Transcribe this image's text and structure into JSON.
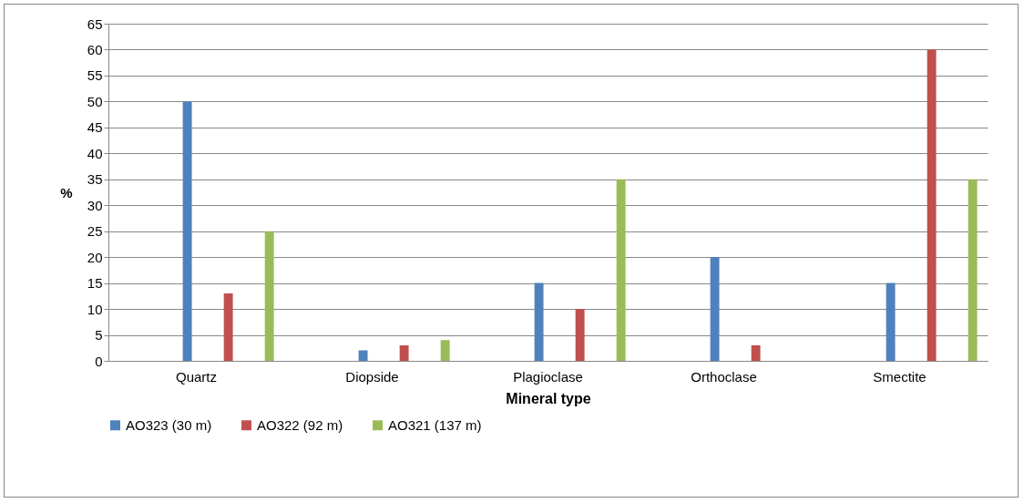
{
  "chart_data": {
    "type": "bar",
    "xlabel": "Mineral type",
    "ylabel": "%",
    "categories": [
      "Quartz",
      "Diopside",
      "Plagioclase",
      "Orthoclase",
      "Smectite"
    ],
    "series": [
      {
        "name": "AO323 (30 m)",
        "color": "#4f81bd",
        "values": [
          50,
          2,
          15,
          20,
          15
        ]
      },
      {
        "name": "AO322 (92 m)",
        "color": "#c0504d",
        "values": [
          13,
          3,
          10,
          3,
          60
        ]
      },
      {
        "name": "AO321 (137 m)",
        "color": "#9bbb59",
        "values": [
          25,
          4,
          35,
          0,
          35
        ]
      }
    ],
    "ylim": [
      0,
      65
    ],
    "yticks": [
      0,
      5,
      10,
      15,
      20,
      25,
      30,
      35,
      40,
      45,
      50,
      55,
      60,
      65
    ],
    "grid": "y",
    "legend": "bottom"
  }
}
